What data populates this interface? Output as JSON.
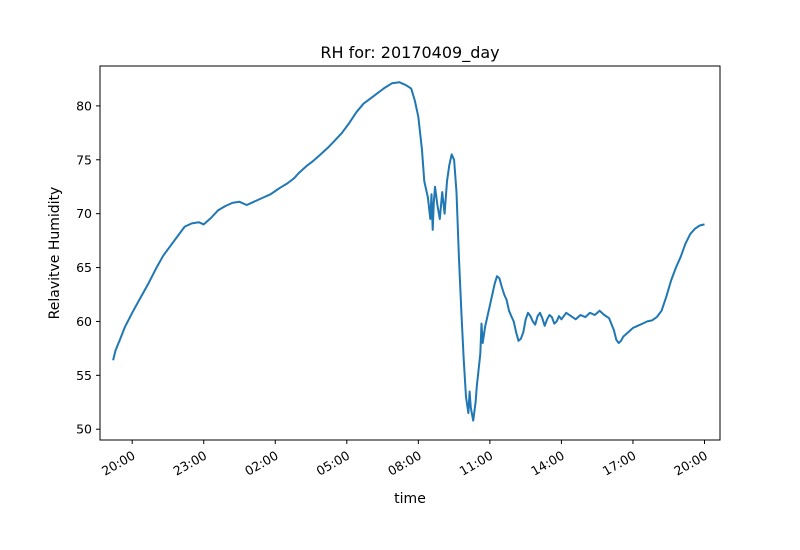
{
  "chart_data": {
    "type": "line",
    "title": "RH for: 20170409_day",
    "xlabel": "time",
    "ylabel": "Relavitve Humidity",
    "grid": false,
    "legend": "none",
    "line_color": "#1f77b4",
    "x_unit": "hours since 2017-04-09 00:00",
    "xlim": [
      18.65,
      44.65
    ],
    "ylim": [
      49.0,
      83.7
    ],
    "x_ticks": [
      {
        "value": 20,
        "label": "20:00"
      },
      {
        "value": 23,
        "label": "23:00"
      },
      {
        "value": 26,
        "label": "02:00"
      },
      {
        "value": 29,
        "label": "05:00"
      },
      {
        "value": 32,
        "label": "08:00"
      },
      {
        "value": 35,
        "label": "11:00"
      },
      {
        "value": 38,
        "label": "14:00"
      },
      {
        "value": 41,
        "label": "17:00"
      },
      {
        "value": 44,
        "label": "20:00"
      }
    ],
    "y_ticks": [
      {
        "value": 50,
        "label": "50"
      },
      {
        "value": 55,
        "label": "55"
      },
      {
        "value": 60,
        "label": "60"
      },
      {
        "value": 65,
        "label": "65"
      },
      {
        "value": 70,
        "label": "70"
      },
      {
        "value": 75,
        "label": "75"
      },
      {
        "value": 80,
        "label": "80"
      }
    ],
    "series": [
      {
        "x": [
          19.2,
          19.3,
          19.5,
          19.7,
          20.0,
          20.3,
          20.7,
          21.0,
          21.3,
          21.7,
          22.0,
          22.2,
          22.5,
          22.8,
          23.0,
          23.3,
          23.6,
          23.9,
          24.2,
          24.5,
          24.8,
          25.0,
          25.3,
          25.5,
          25.8,
          26.0,
          26.2,
          26.5,
          26.8,
          27.0,
          27.3,
          27.6,
          27.9,
          28.2,
          28.5,
          28.8,
          29.1,
          29.4,
          29.7,
          30.0,
          30.3,
          30.6,
          30.9,
          31.2,
          31.5,
          31.7,
          31.85,
          32.0,
          32.15,
          32.25,
          32.4,
          32.5,
          32.55,
          32.6,
          32.65,
          32.7,
          32.8,
          32.9,
          33.0,
          33.1,
          33.2,
          33.3,
          33.4,
          33.5,
          33.6,
          33.7,
          33.8,
          33.9,
          34.0,
          34.1,
          34.15,
          34.2,
          34.3,
          34.4,
          34.45,
          34.5,
          34.6,
          34.65,
          34.7,
          34.8,
          34.9,
          35.0,
          35.1,
          35.2,
          35.3,
          35.4,
          35.5,
          35.6,
          35.7,
          35.8,
          35.9,
          36.0,
          36.1,
          36.2,
          36.3,
          36.4,
          36.5,
          36.6,
          36.7,
          36.8,
          36.9,
          37.0,
          37.1,
          37.2,
          37.3,
          37.4,
          37.5,
          37.6,
          37.7,
          37.8,
          37.9,
          38.0,
          38.2,
          38.4,
          38.6,
          38.8,
          39.0,
          39.2,
          39.4,
          39.6,
          39.8,
          40.0,
          40.2,
          40.3,
          40.4,
          40.5,
          40.6,
          40.8,
          41.0,
          41.2,
          41.4,
          41.6,
          41.8,
          42.0,
          42.2,
          42.4,
          42.6,
          42.8,
          43.0,
          43.2,
          43.4,
          43.6,
          43.8,
          44.0
        ],
        "y": [
          56.4,
          57.3,
          58.4,
          59.5,
          60.8,
          62.0,
          63.6,
          64.9,
          66.1,
          67.3,
          68.2,
          68.8,
          69.1,
          69.2,
          69.0,
          69.6,
          70.3,
          70.7,
          71.0,
          71.1,
          70.8,
          71.0,
          71.3,
          71.5,
          71.8,
          72.1,
          72.4,
          72.8,
          73.3,
          73.8,
          74.4,
          74.9,
          75.5,
          76.1,
          76.8,
          77.5,
          78.4,
          79.4,
          80.2,
          80.7,
          81.2,
          81.7,
          82.1,
          82.2,
          81.9,
          81.6,
          80.5,
          79.0,
          76.0,
          73.0,
          71.5,
          69.5,
          71.8,
          68.5,
          71.0,
          72.5,
          70.8,
          69.5,
          72.0,
          70.0,
          73.0,
          74.5,
          75.5,
          75.0,
          72.0,
          66.0,
          61.0,
          56.5,
          53.0,
          51.5,
          53.5,
          52.0,
          50.8,
          52.5,
          54.0,
          55.0,
          57.0,
          59.8,
          58.0,
          59.5,
          60.5,
          61.5,
          62.5,
          63.5,
          64.2,
          64.0,
          63.2,
          62.5,
          62.0,
          61.0,
          60.5,
          60.0,
          59.0,
          58.2,
          58.4,
          59.0,
          60.2,
          60.8,
          60.5,
          60.0,
          59.7,
          60.5,
          60.8,
          60.3,
          59.6,
          60.2,
          60.6,
          60.4,
          59.8,
          60.0,
          60.5,
          60.2,
          60.8,
          60.5,
          60.2,
          60.6,
          60.4,
          60.8,
          60.6,
          61.0,
          60.6,
          60.3,
          59.2,
          58.3,
          58.0,
          58.2,
          58.6,
          59.0,
          59.4,
          59.6,
          59.8,
          60.0,
          60.1,
          60.4,
          61.0,
          62.3,
          63.8,
          65.0,
          66.0,
          67.2,
          68.1,
          68.6,
          68.9,
          69.0
        ]
      }
    ]
  }
}
